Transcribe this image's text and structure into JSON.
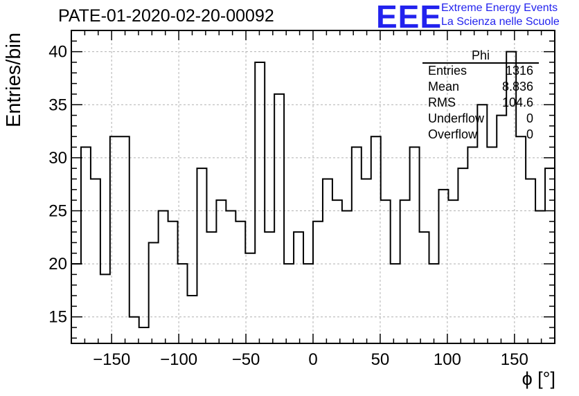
{
  "title": "PATE-01-2020-02-20-00092",
  "logo": {
    "mark": "EEE",
    "line1": "Extreme Energy Events",
    "line2": "La Scienza nelle Scuole",
    "color": "#2222ee"
  },
  "stats_box": {
    "title": "Phi",
    "rows": [
      {
        "key": "Entries",
        "value": "1316"
      },
      {
        "key": "Mean",
        "value": "8.836"
      },
      {
        "key": "RMS",
        "value": "104.6"
      },
      {
        "key": "Underflow",
        "value": "0"
      },
      {
        "key": "Overflow",
        "value": "0"
      }
    ]
  },
  "chart_data": {
    "type": "histogram",
    "xlabel": "ϕ [°]",
    "ylabel": "Entries/bin",
    "xlim": [
      -180,
      180
    ],
    "ylim": [
      12.5,
      42
    ],
    "xticks": [
      -150,
      -100,
      -50,
      0,
      50,
      100,
      150
    ],
    "yticks": [
      15,
      20,
      25,
      30,
      35,
      40
    ],
    "bin_width": 7.2,
    "values": [
      20,
      31,
      28,
      19,
      32,
      32,
      15,
      14,
      22,
      25,
      24,
      20,
      17,
      29,
      23,
      26,
      25,
      24,
      21,
      39,
      23,
      36,
      20,
      23,
      20,
      24,
      28,
      26,
      25,
      31,
      28,
      32,
      26,
      20,
      26,
      31,
      23,
      20,
      27,
      26,
      29,
      31,
      35,
      31,
      34,
      40,
      32,
      28,
      25,
      29
    ],
    "grid": true,
    "line_color": "#000000",
    "grid_color": "#b0b0b0"
  }
}
